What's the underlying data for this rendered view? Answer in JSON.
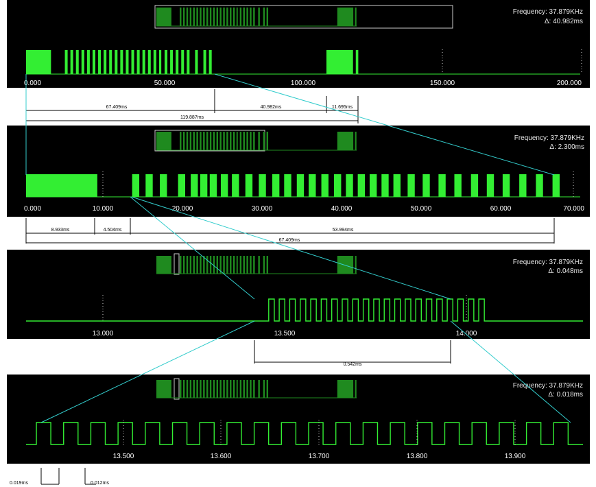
{
  "chart_data": [
    {
      "type": "line",
      "title": "",
      "info": {
        "frequency": "Frequency: 37.879KHz",
        "delta": "Δ: 40.982ms"
      },
      "x_range": [
        0,
        200
      ],
      "ticks": [
        "0.000",
        "50.000",
        "100.000",
        "150.000",
        "200.000"
      ],
      "measurements": [
        "67.409ms",
        "40.982ms",
        "11.695ms",
        "119.887ms"
      ],
      "signal_high_intervals_ms": [
        [
          0,
          9
        ],
        [
          14,
          15
        ],
        [
          16,
          17
        ],
        [
          18,
          19
        ],
        [
          20,
          21
        ],
        [
          22,
          23
        ],
        [
          24,
          25
        ],
        [
          26,
          27
        ],
        [
          28,
          29
        ],
        [
          30,
          31
        ],
        [
          32,
          33
        ],
        [
          34,
          35
        ],
        [
          36,
          37
        ],
        [
          38,
          39
        ],
        [
          40,
          41
        ],
        [
          42,
          43
        ],
        [
          44,
          45
        ],
        [
          46,
          47
        ],
        [
          48,
          48.8
        ],
        [
          50,
          51
        ],
        [
          52,
          53
        ],
        [
          54,
          55
        ],
        [
          56,
          57
        ],
        [
          58,
          59
        ],
        [
          61,
          62
        ],
        [
          64,
          65
        ],
        [
          66,
          67
        ],
        [
          108.4,
          118
        ],
        [
          119,
          119.9
        ]
      ]
    },
    {
      "type": "line",
      "title": "",
      "info": {
        "frequency": "Frequency: 37.879KHz",
        "delta": "Δ: 2.300ms"
      },
      "x_range": [
        0,
        70
      ],
      "ticks": [
        "0.000",
        "10.000",
        "20.000",
        "30.000",
        "40.000",
        "50.000",
        "60.000",
        "70.000"
      ],
      "measurements": [
        "8.933ms",
        "4.504ms",
        "53.994ms",
        "67.409ms"
      ],
      "signal_high_intervals_ms": [
        [
          0,
          9
        ],
        [
          13.4,
          14.3
        ],
        [
          15.1,
          16
        ],
        [
          16.9,
          17.8
        ],
        [
          19.2,
          20.1
        ],
        [
          20.8,
          21.7
        ],
        [
          22,
          22.9
        ],
        [
          23.2,
          24.1
        ],
        [
          24.6,
          25.5
        ],
        [
          26,
          26.9
        ],
        [
          27.7,
          28.6
        ],
        [
          29.4,
          30.3
        ],
        [
          31.1,
          32
        ],
        [
          32.6,
          33.5
        ],
        [
          34.2,
          35.1
        ],
        [
          35.7,
          36.6
        ],
        [
          37.3,
          38.2
        ],
        [
          38.9,
          39.8
        ],
        [
          40.4,
          41.3
        ],
        [
          41.9,
          42.8
        ],
        [
          43.4,
          44.3
        ],
        [
          44.9,
          45.8
        ],
        [
          46.4,
          47.3
        ],
        [
          48.2,
          49.1
        ],
        [
          50.1,
          51
        ],
        [
          52.1,
          53
        ],
        [
          54.1,
          55
        ],
        [
          56.2,
          57.1
        ],
        [
          58.2,
          59.1
        ],
        [
          60.2,
          61.1
        ],
        [
          62.3,
          63.2
        ],
        [
          64.4,
          65.3
        ],
        [
          66.5,
          67.4
        ]
      ]
    },
    {
      "type": "line",
      "title": "",
      "info": {
        "frequency": "Frequency: 37.879KHz",
        "delta": "Δ: 0.048ms"
      },
      "x_range": [
        12.8,
        14.2
      ],
      "ticks": [
        "13.000",
        "13.500",
        "14.000"
      ],
      "measurements": [
        "0.542ms"
      ],
      "pulse_train": {
        "start_ms": 13.41,
        "period_ms": 0.0264,
        "pulse_ms": 0.014,
        "count": 21
      }
    },
    {
      "type": "line",
      "title": "",
      "info": {
        "frequency": "Frequency: 37.879KHz",
        "delta": "Δ: 0.018ms"
      },
      "x_range": [
        13.41,
        13.95
      ],
      "ticks": [
        "13.500",
        "13.600",
        "13.700",
        "13.800",
        "13.900"
      ],
      "measurements": [
        "0.019ms",
        "0.012ms"
      ],
      "pulse_train": {
        "start_ms": 13.42,
        "period_ms": 0.0264,
        "pulse_ms": 0.014,
        "count": 20
      }
    }
  ],
  "colors": {
    "panel": "#000000",
    "signal": "#33ee33",
    "overview": "#1f8a1f",
    "zoom_line": "#33cccc"
  }
}
